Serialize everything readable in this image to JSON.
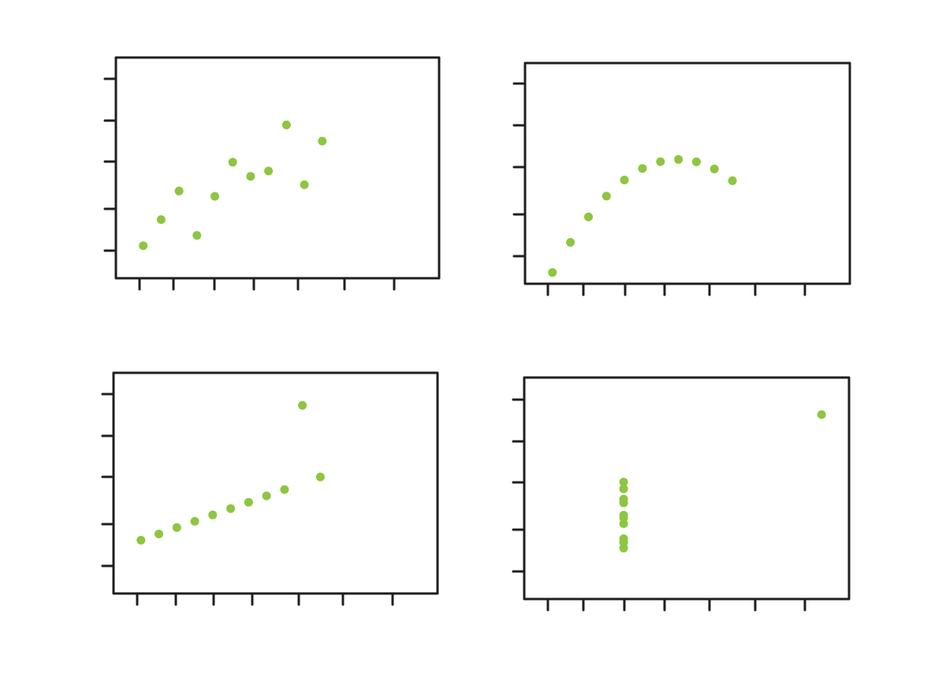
{
  "colors": {
    "point": "#8dc63f",
    "axis": "#1f1f1f",
    "background": "#ffffff"
  },
  "chart_data": [
    {
      "type": "scatter",
      "x": [
        10,
        8,
        13,
        9,
        11,
        14,
        6,
        4,
        12,
        7,
        5
      ],
      "y": [
        8.04,
        6.95,
        7.58,
        8.81,
        8.33,
        9.96,
        7.24,
        4.26,
        10.84,
        4.82,
        5.68
      ],
      "xlim": [
        3,
        20
      ],
      "ylim": [
        3,
        14
      ],
      "grid": false,
      "title": "",
      "xlabel": "",
      "ylabel": ""
    },
    {
      "type": "scatter",
      "x": [
        10,
        8,
        13,
        9,
        11,
        14,
        6,
        4,
        12,
        7,
        5
      ],
      "y": [
        9.14,
        8.14,
        8.74,
        8.77,
        9.26,
        8.1,
        6.13,
        3.1,
        9.13,
        7.26,
        4.74
      ],
      "xlim": [
        3,
        20
      ],
      "ylim": [
        3,
        14
      ],
      "grid": false,
      "title": "",
      "xlabel": "",
      "ylabel": ""
    },
    {
      "type": "scatter",
      "x": [
        10,
        8,
        13,
        9,
        11,
        14,
        6,
        4,
        12,
        7,
        5
      ],
      "y": [
        7.46,
        6.77,
        12.74,
        7.11,
        7.81,
        8.84,
        6.08,
        5.39,
        8.15,
        6.42,
        5.73
      ],
      "xlim": [
        3,
        20
      ],
      "ylim": [
        3,
        14
      ],
      "grid": false,
      "title": "",
      "xlabel": "",
      "ylabel": ""
    },
    {
      "type": "scatter",
      "x": [
        8,
        8,
        8,
        8,
        8,
        8,
        8,
        19,
        8,
        8,
        8
      ],
      "y": [
        6.58,
        5.76,
        7.71,
        8.84,
        8.47,
        7.04,
        5.25,
        12.5,
        5.56,
        7.91,
        6.89
      ],
      "xlim": [
        3,
        20
      ],
      "ylim": [
        3,
        14
      ],
      "grid": false,
      "title": "",
      "xlabel": "",
      "ylabel": ""
    }
  ]
}
